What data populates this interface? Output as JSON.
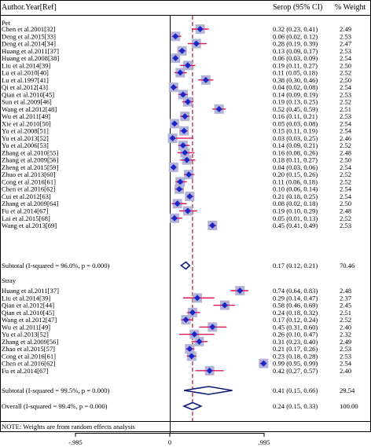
{
  "header": {
    "col_study": "Author.Year[Ref]",
    "col_effect": "Serop (95% CI)",
    "col_weight": "% Weight"
  },
  "note": "NOTE: Weights are from random effects analysis",
  "axis": {
    "ticks": [
      "-.995",
      "0",
      ".995"
    ]
  },
  "chart_data": {
    "type": "forest",
    "xlim": [
      -0.995,
      0.995
    ],
    "reference_line": 0,
    "overall_line": 0.24,
    "groups": [
      {
        "name": "Pet",
        "studies": [
          {
            "label": "Chen et al.2001[32]",
            "est": 0.32,
            "lo": 0.23,
            "hi": 0.41,
            "ci": "0.32 (0.23, 0.41)",
            "weight": "2.49"
          },
          {
            "label": "Deng et al.2015[33]",
            "est": 0.06,
            "lo": 0.02,
            "hi": 0.12,
            "ci": "0.06 (0.02, 0.12)",
            "weight": "2.53"
          },
          {
            "label": "Deng et al.2014[34]",
            "est": 0.28,
            "lo": 0.19,
            "hi": 0.39,
            "ci": "0.28 (0.19, 0.39)",
            "weight": "2.47"
          },
          {
            "label": "Huang et al.2011[37]",
            "est": 0.13,
            "lo": 0.09,
            "hi": 0.17,
            "ci": "0.13 (0.09, 0.17)",
            "weight": "2.53"
          },
          {
            "label": "Huang et al.2008[38]",
            "est": 0.06,
            "lo": 0.03,
            "hi": 0.09,
            "ci": "0.06 (0.03, 0.09)",
            "weight": "2.54"
          },
          {
            "label": "Liu et al.2014[39]",
            "est": 0.19,
            "lo": 0.11,
            "hi": 0.27,
            "ci": "0.19 (0.11, 0.27)",
            "weight": "2.50"
          },
          {
            "label": "Lu et al.2010[40]",
            "est": 0.11,
            "lo": 0.05,
            "hi": 0.18,
            "ci": "0.11 (0.05, 0.18)",
            "weight": "2.52"
          },
          {
            "label": "Lu et al.1997[41]",
            "est": 0.38,
            "lo": 0.3,
            "hi": 0.46,
            "ci": "0.38 (0.30, 0.46)",
            "weight": "2.50"
          },
          {
            "label": "Qi et al.2012[43]",
            "est": 0.04,
            "lo": 0.02,
            "hi": 0.08,
            "ci": "0.04 (0.02, 0.08)",
            "weight": "2.54"
          },
          {
            "label": "Qian et al.2010[45]",
            "est": 0.14,
            "lo": 0.09,
            "hi": 0.19,
            "ci": "0.14 (0.09, 0.19)",
            "weight": "2.53"
          },
          {
            "label": "Sun et al.2009[46]",
            "est": 0.19,
            "lo": 0.13,
            "hi": 0.25,
            "ci": "0.19 (0.13, 0.25)",
            "weight": "2.52"
          },
          {
            "label": "Wang et al.2012[48]",
            "est": 0.52,
            "lo": 0.45,
            "hi": 0.59,
            "ci": "0.52 (0.45, 0.59)",
            "weight": "2.51"
          },
          {
            "label": "Wu et al.2011[49]",
            "est": 0.16,
            "lo": 0.11,
            "hi": 0.21,
            "ci": "0.16 (0.11, 0.21)",
            "weight": "2.53"
          },
          {
            "label": "Xie et al.2010[50]",
            "est": 0.05,
            "lo": 0.03,
            "hi": 0.08,
            "ci": "0.05 (0.03, 0.08)",
            "weight": "2.54"
          },
          {
            "label": "Yu et al.2008[51]",
            "est": 0.15,
            "lo": 0.11,
            "hi": 0.19,
            "ci": "0.15 (0.11, 0.19)",
            "weight": "2.54"
          },
          {
            "label": "Yu et al.2013[52]",
            "est": 0.03,
            "lo": 0.03,
            "hi": 0.25,
            "ci": "0.03 (0.03, 0.25)",
            "weight": "2.46"
          },
          {
            "label": "Yu et al.2006[53]",
            "est": 0.14,
            "lo": 0.09,
            "hi": 0.21,
            "ci": "0.14 (0.09, 0.21)",
            "weight": "2.52"
          },
          {
            "label": "Zhang et al.2010[55]",
            "est": 0.16,
            "lo": 0.08,
            "hi": 0.26,
            "ci": "0.16 (0.08, 0.26)",
            "weight": "2.48"
          },
          {
            "label": "Zhang et al.2009[56]",
            "est": 0.18,
            "lo": 0.11,
            "hi": 0.27,
            "ci": "0.18 (0.11, 0.27)",
            "weight": "2.50"
          },
          {
            "label": "Zheng et al.2015[59]",
            "est": 0.04,
            "lo": 0.03,
            "hi": 0.06,
            "ci": "0.04 (0.03, 0.06)",
            "weight": "2.54"
          },
          {
            "label": "Zhuo et al.2013[60]",
            "est": 0.2,
            "lo": 0.15,
            "hi": 0.26,
            "ci": "0.20 (0.15, 0.26)",
            "weight": "2.52"
          },
          {
            "label": "Cong et al.2016[61]",
            "est": 0.11,
            "lo": 0.06,
            "hi": 0.18,
            "ci": "0.11 (0.06, 0.18)",
            "weight": "2.52"
          },
          {
            "label": "Chen et al.2016[62]",
            "est": 0.1,
            "lo": 0.06,
            "hi": 0.14,
            "ci": "0.10 (0.06, 0.14)",
            "weight": "2.54"
          },
          {
            "label": "Cui et al.2012[63]",
            "est": 0.21,
            "lo": 0.18,
            "hi": 0.25,
            "ci": "0.21 (0.18, 0.25)",
            "weight": "2.54"
          },
          {
            "label": "Zhang et al.2009[64]",
            "est": 0.08,
            "lo": 0.02,
            "hi": 0.18,
            "ci": "0.08 (0.02, 0.18)",
            "weight": "2.50"
          },
          {
            "label": "Fu et al.2014[67]",
            "est": 0.19,
            "lo": 0.1,
            "hi": 0.29,
            "ci": "0.19 (0.10, 0.29)",
            "weight": "2.48"
          },
          {
            "label": "Lai et al.2015[68]",
            "est": 0.05,
            "lo": 0.01,
            "hi": 0.13,
            "ci": "0.05 (0.01, 0.13)",
            "weight": "2.52"
          },
          {
            "label": "Wang et al.2013[69]",
            "est": 0.45,
            "lo": 0.41,
            "hi": 0.49,
            "ci": "0.45 (0.41, 0.49)",
            "weight": "2.53"
          }
        ],
        "subtotal": {
          "label": "Subtotal  (I-squared = 96.0%, p = 0.000)",
          "est": 0.17,
          "lo": 0.12,
          "hi": 0.21,
          "ci": "0.17 (0.12, 0.21)",
          "weight": "70.46"
        }
      },
      {
        "name": "Stray",
        "studies": [
          {
            "label": "Huang et al.2011[37]",
            "est": 0.74,
            "lo": 0.64,
            "hi": 0.83,
            "ci": "0.74 (0.64, 0.83)",
            "weight": "2.48"
          },
          {
            "label": "Liu et al.2014[39]",
            "est": 0.29,
            "lo": 0.14,
            "hi": 0.47,
            "ci": "0.29 (0.14, 0.47)",
            "weight": "2.37"
          },
          {
            "label": "Qian et al.2012[44]",
            "est": 0.58,
            "lo": 0.46,
            "hi": 0.69,
            "ci": "0.58 (0.46, 0.69)",
            "weight": "2.45"
          },
          {
            "label": "Qian et al.2010[45]",
            "est": 0.24,
            "lo": 0.18,
            "hi": 0.32,
            "ci": "0.24 (0.18, 0.32)",
            "weight": "2.51"
          },
          {
            "label": "Wang et al.2012[47]",
            "est": 0.17,
            "lo": 0.12,
            "hi": 0.24,
            "ci": "0.17 (0.12, 0.24)",
            "weight": "2.52"
          },
          {
            "label": "Wu et al.2011[49]",
            "est": 0.45,
            "lo": 0.31,
            "hi": 0.6,
            "ci": "0.45 (0.31, 0.60)",
            "weight": "2.40"
          },
          {
            "label": "Yu et al.2013[52]",
            "est": 0.26,
            "lo": 0.1,
            "hi": 0.47,
            "ci": "0.26 (0.10, 0.47)",
            "weight": "2.32"
          },
          {
            "label": "Zhang et al.2009[56]",
            "est": 0.31,
            "lo": 0.23,
            "hi": 0.4,
            "ci": "0.31 (0.23, 0.40)",
            "weight": "2.49"
          },
          {
            "label": "Zhao et al.2015[57]",
            "est": 0.21,
            "lo": 0.17,
            "hi": 0.26,
            "ci": "0.21 (0.17, 0.26)",
            "weight": "2.53"
          },
          {
            "label": "Cong et al.2016[61]",
            "est": 0.23,
            "lo": 0.18,
            "hi": 0.28,
            "ci": "0.23 (0.18, 0.28)",
            "weight": "2.53"
          },
          {
            "label": "Chen et al.2016[62]",
            "est": 0.99,
            "lo": 0.95,
            "hi": 0.99,
            "ci": "0.99 (0.95, 0.99)",
            "weight": "2.54"
          },
          {
            "label": "Fu et al.2014[67]",
            "est": 0.42,
            "lo": 0.27,
            "hi": 0.57,
            "ci": "0.42 (0.27, 0.57)",
            "weight": "2.40"
          }
        ],
        "subtotal": {
          "label": "Subtotal  (I-squared = 99.5%, p = 0.000)",
          "est": 0.41,
          "lo": 0.15,
          "hi": 0.66,
          "ci": "0.41 (0.15, 0.66)",
          "weight": "29.54"
        }
      }
    ],
    "overall": {
      "label": "Overall  (I-squared = 99.4%, p = 0.000)",
      "est": 0.24,
      "lo": 0.15,
      "hi": 0.33,
      "ci": "0.24 (0.15, 0.33)",
      "weight": "100.00"
    },
    "colors": {
      "box": "#b3b3d6",
      "point": "#1a27c8",
      "ci": "#e0185a",
      "overall_line": "#9b1a28",
      "diamond": "#0d1a7a"
    }
  }
}
